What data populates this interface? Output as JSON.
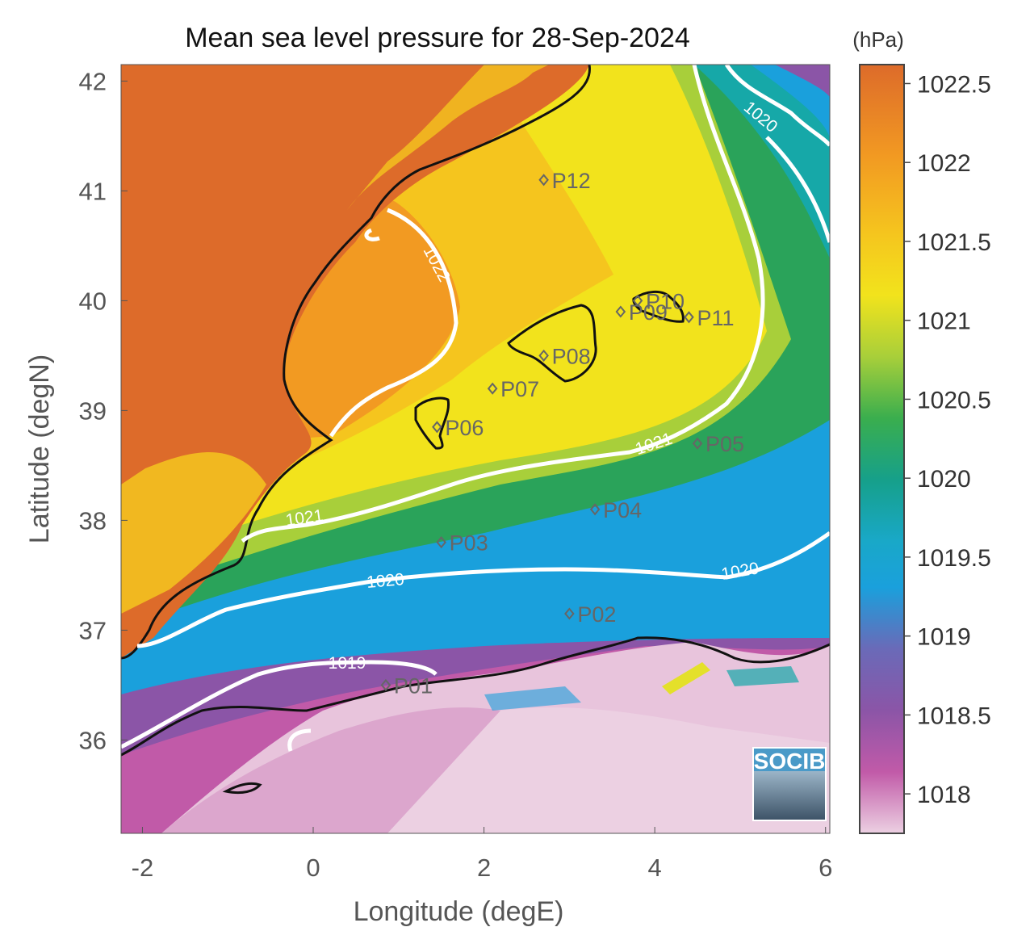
{
  "title": "Mean sea level pressure for 28-Sep-2024",
  "xlabel": "Longitude (degE)",
  "ylabel": "Latitude (degN)",
  "x_ticks": [
    "-2",
    "0",
    "2",
    "4",
    "6"
  ],
  "y_ticks": [
    "42",
    "41",
    "40",
    "39",
    "38",
    "37",
    "36"
  ],
  "colorbar": {
    "unit": "(hPa)",
    "ticks": [
      "1022.5",
      "1022",
      "1021.5",
      "1021",
      "1020.5",
      "1020",
      "1019.5",
      "1019",
      "1018.5",
      "1018"
    ],
    "range": [
      1017.75,
      1022.62
    ]
  },
  "contours": {
    "1022": "1022",
    "1021a": "1021",
    "1021b": "1021",
    "1020a": "1020",
    "1020b": "1020",
    "1020c": "1020",
    "1019": "1019"
  },
  "stations": [
    {
      "label": "P01",
      "lon": 0.85,
      "lat": 36.5
    },
    {
      "label": "P02",
      "lon": 3.0,
      "lat": 37.15
    },
    {
      "label": "P03",
      "lon": 1.5,
      "lat": 37.8
    },
    {
      "label": "P04",
      "lon": 3.3,
      "lat": 38.1
    },
    {
      "label": "P05",
      "lon": 4.5,
      "lat": 38.7
    },
    {
      "label": "P06",
      "lon": 1.45,
      "lat": 38.85
    },
    {
      "label": "P07",
      "lon": 2.1,
      "lat": 39.2
    },
    {
      "label": "P08",
      "lon": 2.7,
      "lat": 39.5
    },
    {
      "label": "P09",
      "lon": 3.6,
      "lat": 39.9
    },
    {
      "label": "P10",
      "lon": 3.8,
      "lat": 40.0
    },
    {
      "label": "P11",
      "lon": 4.4,
      "lat": 39.85
    },
    {
      "label": "P12",
      "lon": 2.7,
      "lat": 41.1
    }
  ],
  "logo": "SOCIB",
  "colors": {
    "land": "#dd6b2a",
    "high": "#f5a623",
    "yellow": "#f2e31c",
    "green": "#2aa35a",
    "teal": "#16a8a8",
    "blue": "#1aa0dc",
    "purple": "#8b55a7",
    "magenta": "#c15aa8",
    "pink": "#e8c4dc"
  }
}
